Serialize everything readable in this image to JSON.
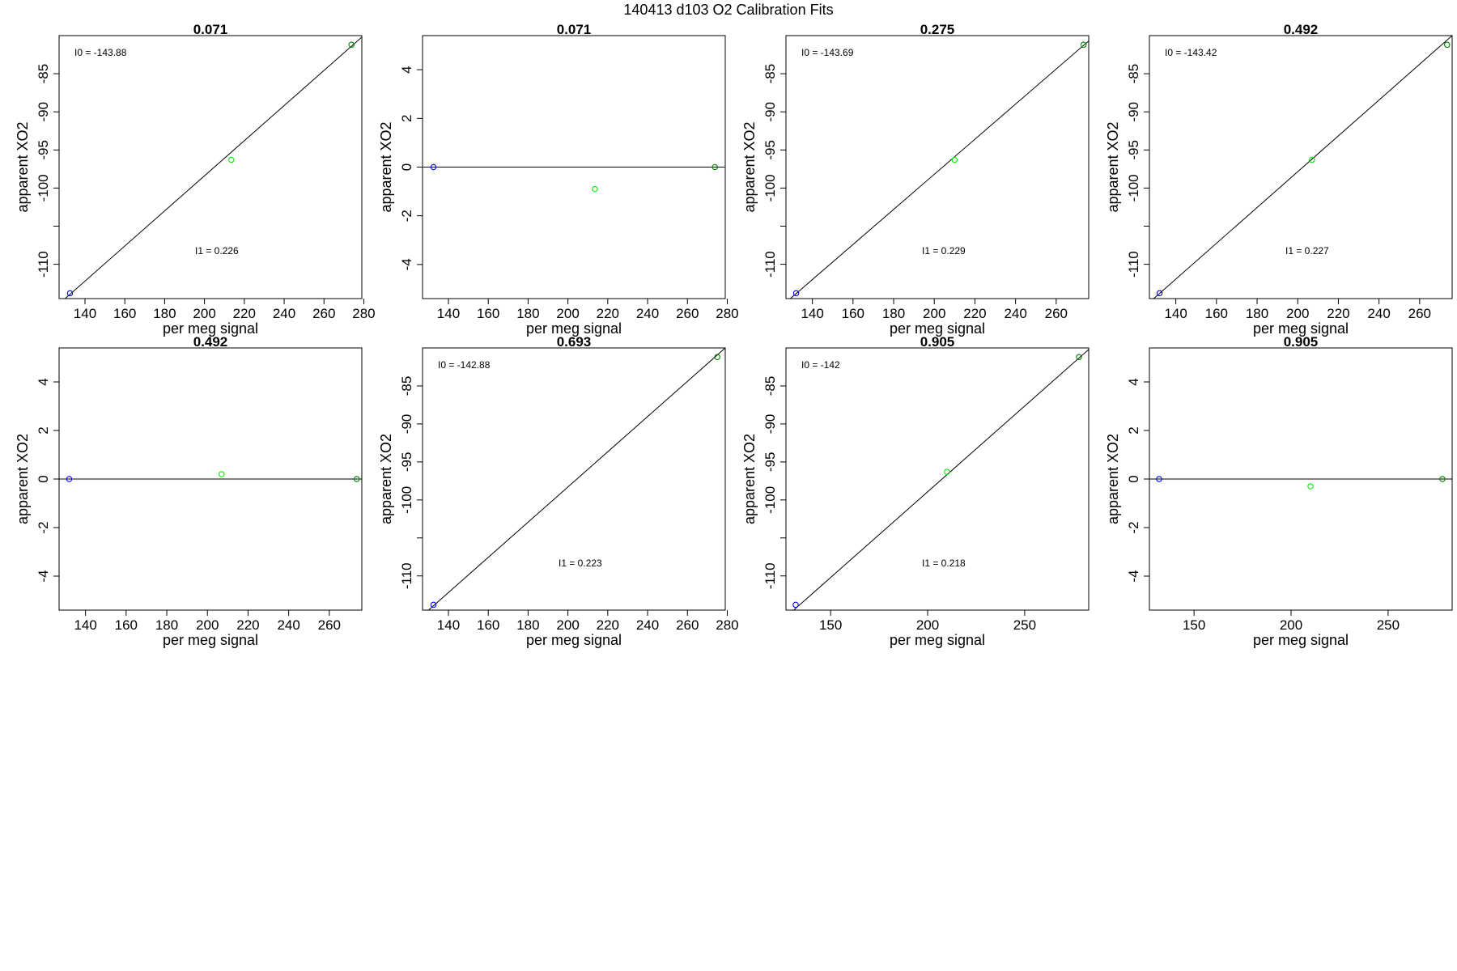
{
  "figure": {
    "title": "140413   d103   O2 Calibration Fits"
  },
  "colors": {
    "low_point": "#0000ff",
    "mid_point": "#00ee00",
    "high_point": "#008000",
    "fit_line": "#000000",
    "frame": "#000000"
  },
  "chart_data": [
    {
      "type": "scatter",
      "title": "0.071",
      "panel_kind": "fit",
      "xlabel": "per meg signal",
      "ylabel": "apparent XO2",
      "xlim": [
        127,
        279
      ],
      "ylim": [
        -114.5,
        -80
      ],
      "xticks": [
        140,
        160,
        180,
        200,
        220,
        240,
        260,
        280
      ],
      "yticks": [
        -110,
        -105,
        -100,
        -95,
        -90,
        -85
      ],
      "yticklabels": [
        "-110",
        "",
        "-100",
        "-95",
        "-90",
        "-85"
      ],
      "points": [
        {
          "x": 132.5,
          "y": -113.8,
          "color": "low_point"
        },
        {
          "x": 213.5,
          "y": -96.3,
          "color": "mid_point"
        },
        {
          "x": 273.8,
          "y": -81.2,
          "color": "high_point"
        }
      ],
      "line": {
        "x": [
          127,
          279
        ],
        "y": [
          -115.2,
          -80.2
        ]
      },
      "intercept_label": "I0 =  -143.88",
      "slope_label": "I1 =  0.226"
    },
    {
      "type": "scatter",
      "title": "0.071",
      "panel_kind": "residual",
      "xlabel": "per meg signal",
      "ylabel": "apparent XO2",
      "xlim": [
        127,
        279
      ],
      "ylim": [
        -5.4,
        5.4
      ],
      "xticks": [
        140,
        160,
        180,
        200,
        220,
        240,
        260,
        280
      ],
      "yticks": [
        -4,
        -2,
        0,
        2,
        4
      ],
      "yticklabels": [
        "-4",
        "-2",
        "0",
        "2",
        "4"
      ],
      "points": [
        {
          "x": 132.5,
          "y": 0,
          "color": "low_point"
        },
        {
          "x": 213.5,
          "y": -0.9,
          "color": "mid_point"
        },
        {
          "x": 273.8,
          "y": 0,
          "color": "high_point"
        }
      ],
      "line": {
        "x": [
          127,
          279
        ],
        "y": [
          0,
          0
        ]
      }
    },
    {
      "type": "scatter",
      "title": "0.275",
      "panel_kind": "fit",
      "xlabel": "per meg signal",
      "ylabel": "apparent XO2",
      "xlim": [
        127,
        276
      ],
      "ylim": [
        -114.5,
        -80
      ],
      "xticks": [
        140,
        160,
        180,
        200,
        220,
        240,
        260
      ],
      "yticks": [
        -110,
        -105,
        -100,
        -95,
        -90,
        -85
      ],
      "yticklabels": [
        "-110",
        "",
        "-100",
        "-95",
        "-90",
        "-85"
      ],
      "points": [
        {
          "x": 132,
          "y": -113.8,
          "color": "low_point"
        },
        {
          "x": 210,
          "y": -96.3,
          "color": "mid_point"
        },
        {
          "x": 273.5,
          "y": -81.2,
          "color": "high_point"
        }
      ],
      "line": {
        "x": [
          127,
          276
        ],
        "y": [
          -115,
          -80.7
        ]
      },
      "intercept_label": "I0 =  -143.69",
      "slope_label": "I1 =  0.229"
    },
    {
      "type": "scatter",
      "title": "0.492",
      "panel_kind": "fit",
      "xlabel": "per meg signal",
      "ylabel": "apparent XO2",
      "xlim": [
        127,
        276
      ],
      "ylim": [
        -114.5,
        -80
      ],
      "xticks": [
        140,
        160,
        180,
        200,
        220,
        240,
        260
      ],
      "yticks": [
        -110,
        -105,
        -100,
        -95,
        -90,
        -85
      ],
      "yticklabels": [
        "-110",
        "",
        "-100",
        "-95",
        "-90",
        "-85"
      ],
      "points": [
        {
          "x": 132,
          "y": -113.8,
          "color": "low_point"
        },
        {
          "x": 207,
          "y": -96.3,
          "color": "mid_point"
        },
        {
          "x": 273.5,
          "y": -81.2,
          "color": "high_point"
        }
      ],
      "line": {
        "x": [
          127,
          276
        ],
        "y": [
          -115.0,
          -80.0
        ]
      },
      "intercept_label": "I0 =  -143.42",
      "slope_label": "I1 =  0.227"
    },
    {
      "type": "scatter",
      "title": "0.492",
      "panel_kind": "residual",
      "xlabel": "per meg signal",
      "ylabel": "apparent XO2",
      "xlim": [
        127,
        276
      ],
      "ylim": [
        -5.4,
        5.4
      ],
      "xticks": [
        140,
        160,
        180,
        200,
        220,
        240,
        260
      ],
      "yticks": [
        -4,
        -2,
        0,
        2,
        4
      ],
      "yticklabels": [
        "-4",
        "-2",
        "0",
        "2",
        "4"
      ],
      "points": [
        {
          "x": 132,
          "y": 0,
          "color": "low_point"
        },
        {
          "x": 207,
          "y": 0.2,
          "color": "mid_point"
        },
        {
          "x": 273.5,
          "y": 0,
          "color": "high_point"
        }
      ],
      "line": {
        "x": [
          127,
          276
        ],
        "y": [
          0,
          0
        ]
      }
    },
    {
      "type": "scatter",
      "title": "0.693",
      "panel_kind": "fit",
      "xlabel": "per meg signal",
      "ylabel": "apparent XO2",
      "xlim": [
        127,
        279
      ],
      "ylim": [
        -114.5,
        -80
      ],
      "xticks": [
        140,
        160,
        180,
        200,
        220,
        240,
        260,
        280
      ],
      "yticks": [
        -110,
        -105,
        -100,
        -95,
        -90,
        -85
      ],
      "yticklabels": [
        "-110",
        "",
        "-100",
        "-95",
        "-90",
        "-85"
      ],
      "points": [
        {
          "x": 132.5,
          "y": -113.8,
          "color": "low_point"
        },
        {
          "x": 275,
          "y": -81.2,
          "color": "high_point"
        }
      ],
      "line": {
        "x": [
          127,
          279
        ],
        "y": [
          -115.2,
          -80.0
        ]
      },
      "intercept_label": "I0 =  -142.88",
      "slope_label": "I1 =  0.223"
    },
    {
      "type": "scatter",
      "title": "0.905",
      "panel_kind": "fit",
      "xlabel": "per meg signal",
      "ylabel": "apparent XO2",
      "xlim": [
        127,
        283
      ],
      "ylim": [
        -114.5,
        -80
      ],
      "xticks": [
        150,
        200,
        250
      ],
      "yticks": [
        -110,
        -105,
        -100,
        -95,
        -90,
        -85
      ],
      "yticklabels": [
        "-110",
        "",
        "-100",
        "-95",
        "-90",
        "-85"
      ],
      "points": [
        {
          "x": 132,
          "y": -113.8,
          "color": "low_point"
        },
        {
          "x": 210,
          "y": -96.3,
          "color": "mid_point"
        },
        {
          "x": 278,
          "y": -81.2,
          "color": "high_point"
        }
      ],
      "line": {
        "x": [
          127,
          283
        ],
        "y": [
          -115.4,
          -80.2
        ]
      },
      "intercept_label": "I0 =  -142",
      "slope_label": "I1 =  0.218"
    },
    {
      "type": "scatter",
      "title": "0.905",
      "panel_kind": "residual",
      "xlabel": "per meg signal",
      "ylabel": "apparent XO2",
      "xlim": [
        127,
        283
      ],
      "ylim": [
        -5.4,
        5.4
      ],
      "xticks": [
        150,
        200,
        250
      ],
      "yticks": [
        -4,
        -2,
        0,
        2,
        4
      ],
      "yticklabels": [
        "-4",
        "-2",
        "0",
        "2",
        "4"
      ],
      "points": [
        {
          "x": 132,
          "y": 0,
          "color": "low_point"
        },
        {
          "x": 210,
          "y": -0.3,
          "color": "mid_point"
        },
        {
          "x": 278,
          "y": 0,
          "color": "high_point"
        }
      ],
      "line": {
        "x": [
          127,
          283
        ],
        "y": [
          0,
          0
        ]
      }
    }
  ]
}
